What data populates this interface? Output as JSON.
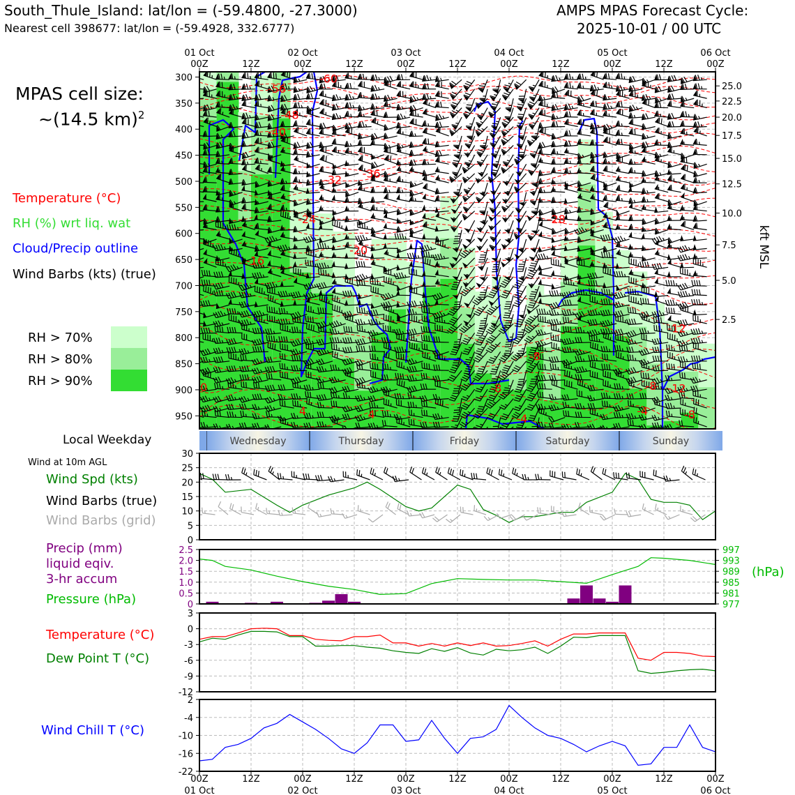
{
  "header": {
    "station_title": "South_Thule_Island: lat/lon = (-59.4800, -27.3000)",
    "nearest_cell": "Nearest cell 398677: lat/lon = (-59.4928, 332.6777)",
    "cycle_line1": "AMPS MPAS Forecast Cycle:",
    "cycle_line2": "2025-10-01 / 00 UTC"
  },
  "left_panel": {
    "cell_size_line1": "MPAS cell size:",
    "cell_size_line2": "~(14.5 km)",
    "cell_size_sup": "2",
    "legend_temperature": "Temperature (°C)",
    "legend_rh": "RH (%) wrt liq. wat",
    "legend_cloud": "Cloud/Precip outline",
    "legend_wind": "Wind Barbs (kts) (true)",
    "rh70": "RH > 70%",
    "rh80": "RH > 80%",
    "rh90": "RH > 90%",
    "local_weekday": "Local Weekday",
    "wind_10m": "Wind at 10m AGL",
    "wind_spd": "Wind Spd (kts)",
    "wind_barbs_true": "Wind Barbs (true)",
    "wind_barbs_grid": "Wind Barbs (grid)",
    "precip_line1": "Precip (mm)",
    "precip_line2": "liquid eqiv.",
    "precip_line3": "3-hr accum",
    "pressure": "Pressure (hPa)",
    "temperature": "Temperature (°C)",
    "dewpoint": "Dew Point T (°C)",
    "windchill": "Wind Chill T (°C)"
  },
  "colors": {
    "temperature": "#ff0000",
    "rh_label": "#33dd33",
    "cloud": "#0000ff",
    "rh70": "#ccffcc",
    "rh80": "#99ee99",
    "rh90": "#33dd33",
    "wind_spd": "#008000",
    "wind_grid": "#aaaaaa",
    "precip": "#800080",
    "pressure": "#00bb00",
    "dewpoint": "#008000",
    "windchill": "#0000ff"
  },
  "chart_data": [
    {
      "type": "heatmap",
      "name": "vertical-cross-section",
      "time_ticks_top_line1": [
        "01 Oct",
        "",
        "02 Oct",
        "",
        "03 Oct",
        "",
        "04 Oct",
        "",
        "05 Oct",
        "",
        "06 Oct"
      ],
      "time_ticks_top_line2": [
        "00Z",
        "12Z",
        "00Z",
        "12Z",
        "00Z",
        "12Z",
        "00Z",
        "12Z",
        "00Z",
        "12Z",
        "00Z"
      ],
      "pressure_ticks": [
        "300",
        "350",
        "400",
        "450",
        "500",
        "550",
        "600",
        "650",
        "700",
        "750",
        "800",
        "850",
        "900",
        "950"
      ],
      "height_ticks": [
        "25.0",
        "22.5",
        "20.0",
        "17.5",
        "15.0",
        "12.5",
        "10.0",
        "7.5",
        "5.0",
        "2.5"
      ],
      "height_tick_pressures": [
        317,
        346,
        377,
        412,
        456,
        505,
        561,
        622,
        690,
        765
      ],
      "right_axis_label": "kft MSL",
      "ylim_hpa": [
        290,
        975
      ],
      "xlim_hours": [
        0,
        120
      ],
      "temperature_labels": [
        {
          "text": "-60",
          "t": 30,
          "p": 311
        },
        {
          "text": "-56",
          "t": 18,
          "p": 330
        },
        {
          "text": "-48",
          "t": 21,
          "p": 380
        },
        {
          "text": "-40",
          "t": 18,
          "p": 413
        },
        {
          "text": "-36",
          "t": 40,
          "p": 493
        },
        {
          "text": "-32",
          "t": 31,
          "p": 505
        },
        {
          "text": "-28",
          "t": 83,
          "p": 580
        },
        {
          "text": "-24",
          "t": 25,
          "p": 580
        },
        {
          "text": "-20",
          "t": 37,
          "p": 640
        },
        {
          "text": "-16",
          "t": 13,
          "p": 660
        },
        {
          "text": "-12",
          "t": 111,
          "p": 790
        },
        {
          "text": "-8",
          "t": 78,
          "p": 843
        },
        {
          "text": "-8",
          "t": 105,
          "p": 900
        },
        {
          "text": "-12",
          "t": 111,
          "p": 905
        },
        {
          "text": "-8",
          "t": 69,
          "p": 905
        },
        {
          "text": "-4",
          "t": 103,
          "p": 948
        },
        {
          "text": "-4",
          "t": 75,
          "p": 963
        },
        {
          "text": "0",
          "t": 1,
          "p": 903
        },
        {
          "text": "-8",
          "t": 114,
          "p": 955
        },
        {
          "text": "4",
          "t": 40,
          "p": 955
        },
        {
          "text": "4",
          "t": 24,
          "p": 948
        }
      ]
    },
    {
      "type": "line",
      "name": "wind-speed-10m",
      "ylim": [
        0,
        30
      ],
      "yticks": [
        "0",
        "5",
        "10",
        "15",
        "20",
        "25",
        "30"
      ],
      "x_hours": [
        0,
        3,
        6,
        12,
        18,
        21,
        24,
        30,
        36,
        39,
        42,
        48,
        51,
        54,
        60,
        63,
        66,
        69,
        72,
        75,
        78,
        84,
        87,
        90,
        96,
        99,
        102,
        105,
        108,
        111,
        114,
        117,
        120
      ],
      "values": [
        23,
        21,
        16.5,
        17.5,
        12,
        9.5,
        12,
        15.5,
        18,
        20,
        17.5,
        11.5,
        10,
        11,
        19,
        17.5,
        10.5,
        8.5,
        6,
        8,
        8,
        9.5,
        9.5,
        13,
        16.5,
        23,
        21,
        14,
        13,
        13,
        12,
        7,
        10
      ],
      "barbs_true_times": [
        0,
        3,
        6,
        9,
        12,
        15,
        18,
        21,
        24,
        27,
        30,
        33,
        36,
        39,
        42,
        45,
        48,
        51,
        54,
        57,
        60,
        63,
        66,
        69,
        72,
        75,
        78,
        81,
        84,
        87,
        90,
        93,
        96,
        99,
        102,
        105,
        108,
        111,
        114,
        117
      ],
      "barbs_grid_times": [
        0,
        3,
        6,
        9,
        12,
        15,
        18,
        21,
        24,
        27,
        30,
        33,
        36,
        39,
        42,
        45,
        48,
        51,
        54,
        57,
        60,
        63,
        66,
        69,
        72,
        75,
        78,
        81,
        84,
        87,
        90,
        93,
        96,
        99,
        102,
        105,
        108,
        111,
        114,
        117
      ]
    },
    {
      "type": "bar",
      "name": "precip-pressure",
      "precip_yticks": [
        "0",
        "0.5",
        "1.0",
        "1.5",
        "2.0",
        "2.5"
      ],
      "precip_ylim": [
        0,
        2.5
      ],
      "pressure_yticks": [
        "977",
        "981",
        "985",
        "989",
        "993",
        "997"
      ],
      "pressure_ylim": [
        977,
        997
      ],
      "pressure_unit": "(hPa)",
      "precip_times": [
        3,
        12,
        18,
        27,
        30,
        33,
        36,
        87,
        90,
        93,
        96,
        99
      ],
      "precip_values": [
        0.1,
        0.05,
        0.1,
        0.05,
        0.15,
        0.45,
        0.1,
        0.25,
        0.85,
        0.25,
        0.1,
        0.85
      ],
      "pressure_times": [
        0,
        3,
        6,
        12,
        18,
        24,
        30,
        36,
        42,
        48,
        54,
        60,
        66,
        72,
        78,
        84,
        90,
        96,
        102,
        105,
        108,
        114,
        120
      ],
      "pressure_values": [
        993.5,
        993,
        990.8,
        989.5,
        987.2,
        985.2,
        983.5,
        982.3,
        980.5,
        980.8,
        984.5,
        986.3,
        986,
        985.8,
        985.8,
        985.2,
        984.6,
        987.8,
        990.8,
        994,
        993.8,
        993,
        991.5
      ]
    },
    {
      "type": "line",
      "name": "temperature-dewpoint",
      "ylim": [
        -12,
        3
      ],
      "yticks": [
        "3",
        "0",
        "-3",
        "-6",
        "-9",
        "-12"
      ],
      "x_hours": [
        0,
        3,
        6,
        9,
        12,
        15,
        18,
        21,
        24,
        27,
        30,
        33,
        36,
        39,
        42,
        45,
        48,
        51,
        54,
        57,
        60,
        63,
        66,
        69,
        72,
        75,
        78,
        81,
        84,
        87,
        90,
        93,
        96,
        99,
        102,
        105,
        108,
        111,
        114,
        117,
        120
      ],
      "temperature": [
        -2,
        -1.5,
        -1.5,
        -0.8,
        0,
        0.1,
        0,
        -1.3,
        -1.3,
        -2,
        -2.2,
        -2.3,
        -1.5,
        -1.5,
        -1.2,
        -2.7,
        -2.7,
        -3.3,
        -2.8,
        -3.3,
        -2.7,
        -3.2,
        -2.7,
        -3.3,
        -3.2,
        -2.8,
        -2.3,
        -3.3,
        -2,
        -1,
        -1,
        -0.8,
        -0.8,
        -0.8,
        -5.6,
        -6,
        -4.5,
        -4.5,
        -4.7,
        -5.2,
        -5.3
      ],
      "dewpoint": [
        -2.5,
        -1.8,
        -2,
        -1.2,
        -0.5,
        -0.5,
        -0.6,
        -1.5,
        -1.5,
        -3.3,
        -3.3,
        -3.2,
        -3.2,
        -3.5,
        -3.7,
        -4.2,
        -4.5,
        -4.7,
        -3.8,
        -4.3,
        -3.6,
        -4.6,
        -5,
        -3.9,
        -4.2,
        -4,
        -3.5,
        -4.7,
        -3.3,
        -1.6,
        -1.7,
        -1.3,
        -1.3,
        -1.3,
        -8,
        -8.5,
        -8.3,
        -8,
        -7.8,
        -7.7,
        -8
      ]
    },
    {
      "type": "line",
      "name": "wind-chill",
      "ylim": [
        -22,
        2
      ],
      "yticks": [
        "2",
        "-4",
        "-10",
        "-16",
        "-22"
      ],
      "x_hours": [
        0,
        3,
        6,
        9,
        12,
        15,
        18,
        21,
        24,
        27,
        30,
        33,
        36,
        39,
        42,
        45,
        48,
        51,
        54,
        57,
        60,
        63,
        66,
        69,
        72,
        75,
        78,
        81,
        84,
        87,
        90,
        93,
        96,
        99,
        102,
        105,
        108,
        111,
        114,
        117,
        120
      ],
      "values": [
        -18.5,
        -18,
        -14,
        -13,
        -11,
        -7.5,
        -6,
        -3,
        -5.5,
        -8,
        -11,
        -14.5,
        -16,
        -12.5,
        -6.5,
        -6.5,
        -12,
        -11.5,
        -5,
        -11,
        -16,
        -11,
        -10.5,
        -8,
        0,
        -4,
        -7.5,
        -10,
        -11,
        -13,
        -15.5,
        -13.5,
        -12,
        -13.5,
        -20,
        -19.5,
        -14,
        -14,
        -6.5,
        -14,
        -15.5
      ]
    }
  ],
  "bottom_axis": {
    "line1": [
      "00Z",
      "12Z",
      "00Z",
      "12Z",
      "00Z",
      "12Z",
      "00Z",
      "12Z",
      "00Z",
      "12Z",
      "00Z"
    ],
    "line2": [
      "01 Oct",
      "",
      "02 Oct",
      "",
      "03 Oct",
      "",
      "04 Oct",
      "",
      "05 Oct",
      "",
      "06 Oct"
    ]
  },
  "weekdays": [
    "Wednesday",
    "Thursday",
    "Friday",
    "Saturday",
    "Sunday"
  ]
}
